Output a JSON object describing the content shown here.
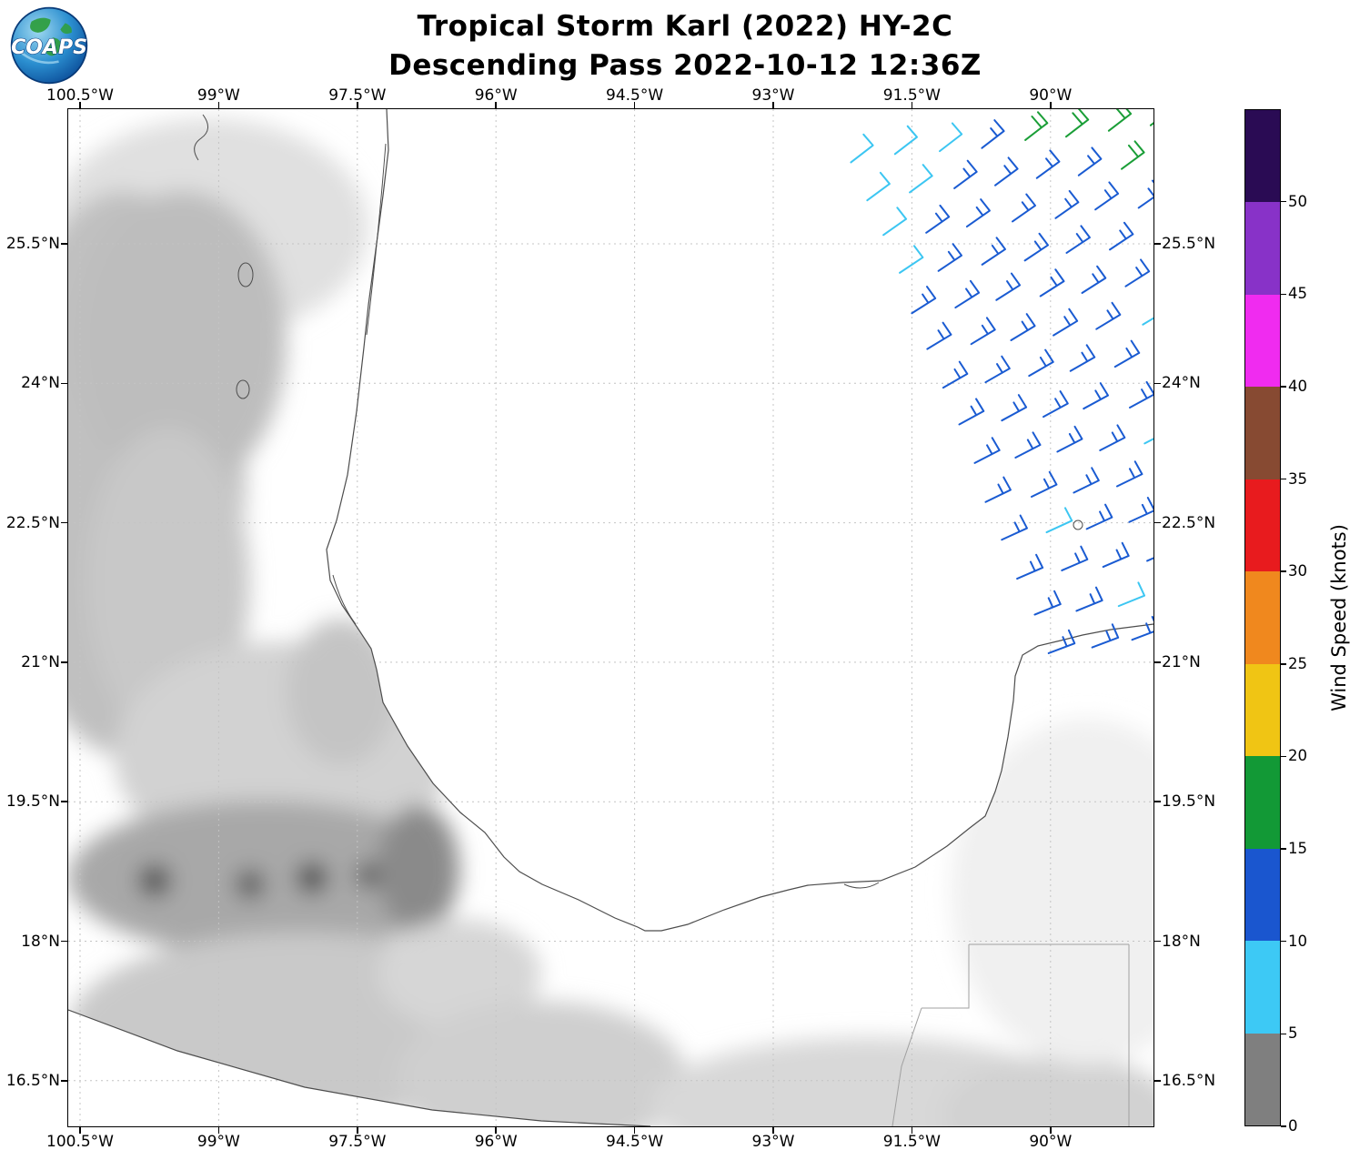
{
  "title": {
    "line1": "Tropical Storm Karl (2022) HY-2C",
    "line2": "Descending Pass 2022-10-12 12:36Z"
  },
  "logo": {
    "text": "COAPS"
  },
  "map": {
    "lon_ticks": [
      "100.5°W",
      "99°W",
      "97.5°W",
      "96°W",
      "94.5°W",
      "93°W",
      "91.5°W",
      "90°W"
    ],
    "lat_ticks": [
      "25.5°N",
      "24°N",
      "22.5°N",
      "21°N",
      "19.5°N",
      "18°N",
      "16.5°N"
    ]
  },
  "colorbar": {
    "label": "Wind Speed (knots)",
    "min": 0,
    "max": 55,
    "ticks": [
      0,
      5,
      10,
      15,
      20,
      25,
      30,
      35,
      40,
      45,
      50
    ],
    "segments": [
      {
        "from": 0,
        "to": 5,
        "color": "#7f7f7f"
      },
      {
        "from": 5,
        "to": 10,
        "color": "#3dc9f5"
      },
      {
        "from": 10,
        "to": 15,
        "color": "#1a56cf"
      },
      {
        "from": 15,
        "to": 20,
        "color": "#129936"
      },
      {
        "from": 20,
        "to": 25,
        "color": "#f0c514"
      },
      {
        "from": 25,
        "to": 30,
        "color": "#f0881e"
      },
      {
        "from": 30,
        "to": 35,
        "color": "#e81b1e"
      },
      {
        "from": 35,
        "to": 40,
        "color": "#874a32"
      },
      {
        "from": 40,
        "to": 45,
        "color": "#f02bf0"
      },
      {
        "from": 45,
        "to": 50,
        "color": "#8832c8"
      },
      {
        "from": 50,
        "to": 55,
        "color": "#2a0b54"
      }
    ]
  },
  "chart_data": {
    "type": "map",
    "title": "Tropical Storm Karl (2022) HY-2C",
    "subtitle": "Descending Pass 2022-10-12 12:36Z",
    "lon_axis": {
      "tick_labels": [
        "100.5°W",
        "99°W",
        "97.5°W",
        "96°W",
        "94.5°W",
        "93°W",
        "91.5°W",
        "90°W"
      ],
      "range_deg_w": [
        100.6,
        88.9
      ]
    },
    "lat_axis": {
      "tick_labels": [
        "25.5°N",
        "24°N",
        "22.5°N",
        "21°N",
        "19.5°N",
        "18°N",
        "16.5°N"
      ],
      "range_deg_n": [
        16.0,
        27.0
      ]
    },
    "colorbar_label": "Wind Speed (knots)",
    "basemap": "Grayscale terrain of eastern Mexico / Gulf of Mexico / Yucatan, coastlines and country borders",
    "wind_swath": {
      "description": "HY-2C scatterometer wind barbs confined to the northeast corner of the map (southeastern Gulf of Mexico, roughly 92.5W-89W, 22N-27N); most barbs 10-15 kt (blue), swath edge barbs 5-10 kt (cyan), a few 15-20 kt (green) at the far northeast corner",
      "colors": {
        "blue": "#1a5bd2",
        "cyan": "#3cc6f2",
        "green": "#1a9e37"
      },
      "grid": {
        "origin": [
          875,
          48
        ],
        "col_step": [
          46.8,
          -5.6
        ],
        "row_step": [
          16.6,
          41.8
        ],
        "rows": 14,
        "cols": 9,
        "x_max": 1205,
        "cyan_cells": [
          [
            0,
            0
          ],
          [
            0,
            1
          ],
          [
            0,
            2
          ],
          [
            1,
            0
          ],
          [
            1,
            1
          ],
          [
            2,
            0
          ],
          [
            3,
            0
          ],
          [
            5,
            5
          ],
          [
            8,
            4
          ],
          [
            12,
            2
          ],
          [
            10,
            1
          ]
        ],
        "green_cells": [
          [
            0,
            4
          ],
          [
            0,
            5
          ],
          [
            0,
            6
          ],
          [
            0,
            7
          ],
          [
            1,
            6
          ]
        ]
      }
    }
  }
}
